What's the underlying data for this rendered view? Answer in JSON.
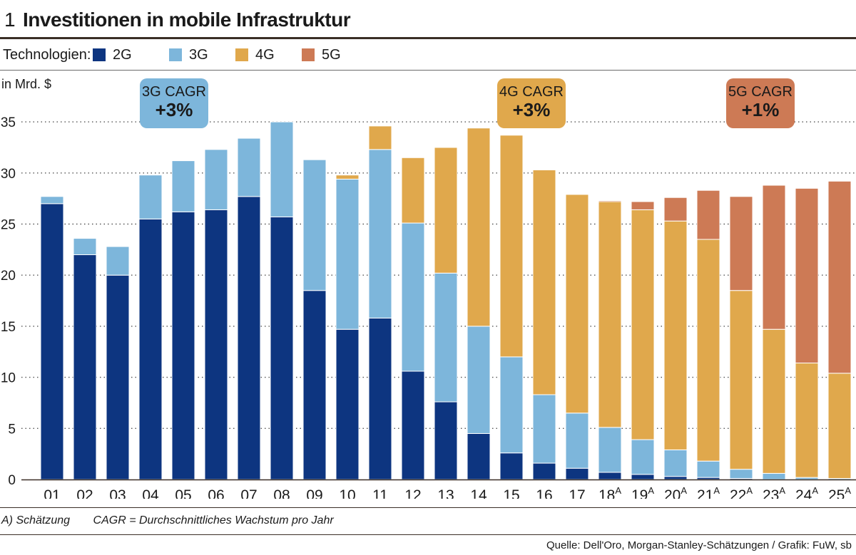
{
  "figure": {
    "number": "1",
    "title": "Investitionen in mobile Infrastruktur"
  },
  "legend": {
    "label": "Technologien:",
    "items": [
      {
        "name": "2G",
        "color": "#0d3580"
      },
      {
        "name": "3G",
        "color": "#7db6db"
      },
      {
        "name": "4G",
        "color": "#e0a84c"
      },
      {
        "name": "5G",
        "color": "#cd7a55"
      }
    ]
  },
  "annotations": [
    {
      "title": "3G CAGR",
      "value": "+3%",
      "color": "#7db6db"
    },
    {
      "title": "4G CAGR",
      "value": "+3%",
      "color": "#e0a84c"
    },
    {
      "title": "5G CAGR",
      "value": "+1%",
      "color": "#cd7a55"
    }
  ],
  "footnotes": [
    "A) Schätzung",
    "CAGR = Durchschnittliches Wachstum pro Jahr"
  ],
  "source": "Quelle: Dell'Oro, Morgan-Stanley-Schätzungen / Grafik: FuW, sb",
  "chart_data": {
    "type": "bar",
    "stacked": true,
    "title": "Investitionen in mobile Infrastruktur",
    "ylabel": "in Mrd. $",
    "xlabel": "",
    "ylim": [
      0,
      35
    ],
    "yticks": [
      0,
      5,
      10,
      15,
      20,
      25,
      30,
      35
    ],
    "grid": "dotted horizontal",
    "categories": [
      "01",
      "02",
      "03",
      "04",
      "05",
      "06",
      "07",
      "08",
      "09",
      "10",
      "11",
      "12",
      "13",
      "14",
      "15",
      "16",
      "17",
      "18",
      "19",
      "20",
      "21",
      "22",
      "23",
      "24",
      "25"
    ],
    "estimate_marker": "A",
    "estimated": [
      false,
      false,
      false,
      false,
      false,
      false,
      false,
      false,
      false,
      false,
      false,
      false,
      false,
      false,
      false,
      false,
      false,
      true,
      true,
      true,
      true,
      true,
      true,
      true,
      true
    ],
    "series": [
      {
        "name": "2G",
        "values": [
          27.0,
          22.0,
          20.0,
          25.5,
          26.2,
          26.4,
          27.7,
          25.7,
          18.5,
          14.7,
          15.8,
          10.6,
          7.6,
          4.5,
          2.6,
          1.6,
          1.1,
          0.7,
          0.5,
          0.3,
          0.2,
          0.1,
          0.0,
          0.0,
          0.0
        ]
      },
      {
        "name": "3G",
        "values": [
          0.7,
          1.6,
          2.8,
          4.3,
          5.0,
          5.9,
          5.7,
          9.3,
          12.8,
          14.7,
          16.5,
          14.5,
          12.6,
          10.5,
          9.4,
          6.7,
          5.4,
          4.4,
          3.4,
          2.6,
          1.6,
          0.9,
          0.6,
          0.2,
          0.1
        ]
      },
      {
        "name": "4G",
        "values": [
          0.0,
          0.0,
          0.0,
          0.0,
          0.0,
          0.0,
          0.0,
          0.0,
          0.0,
          0.4,
          2.3,
          6.4,
          12.3,
          19.4,
          21.7,
          22.0,
          21.4,
          22.1,
          22.5,
          22.4,
          21.7,
          17.5,
          14.1,
          11.2,
          10.3
        ]
      },
      {
        "name": "5G",
        "values": [
          0.0,
          0.0,
          0.0,
          0.0,
          0.0,
          0.0,
          0.0,
          0.0,
          0.0,
          0.0,
          0.0,
          0.0,
          0.0,
          0.0,
          0.0,
          0.0,
          0.0,
          0.1,
          0.8,
          2.3,
          4.8,
          9.2,
          14.1,
          17.1,
          18.8
        ]
      }
    ]
  }
}
